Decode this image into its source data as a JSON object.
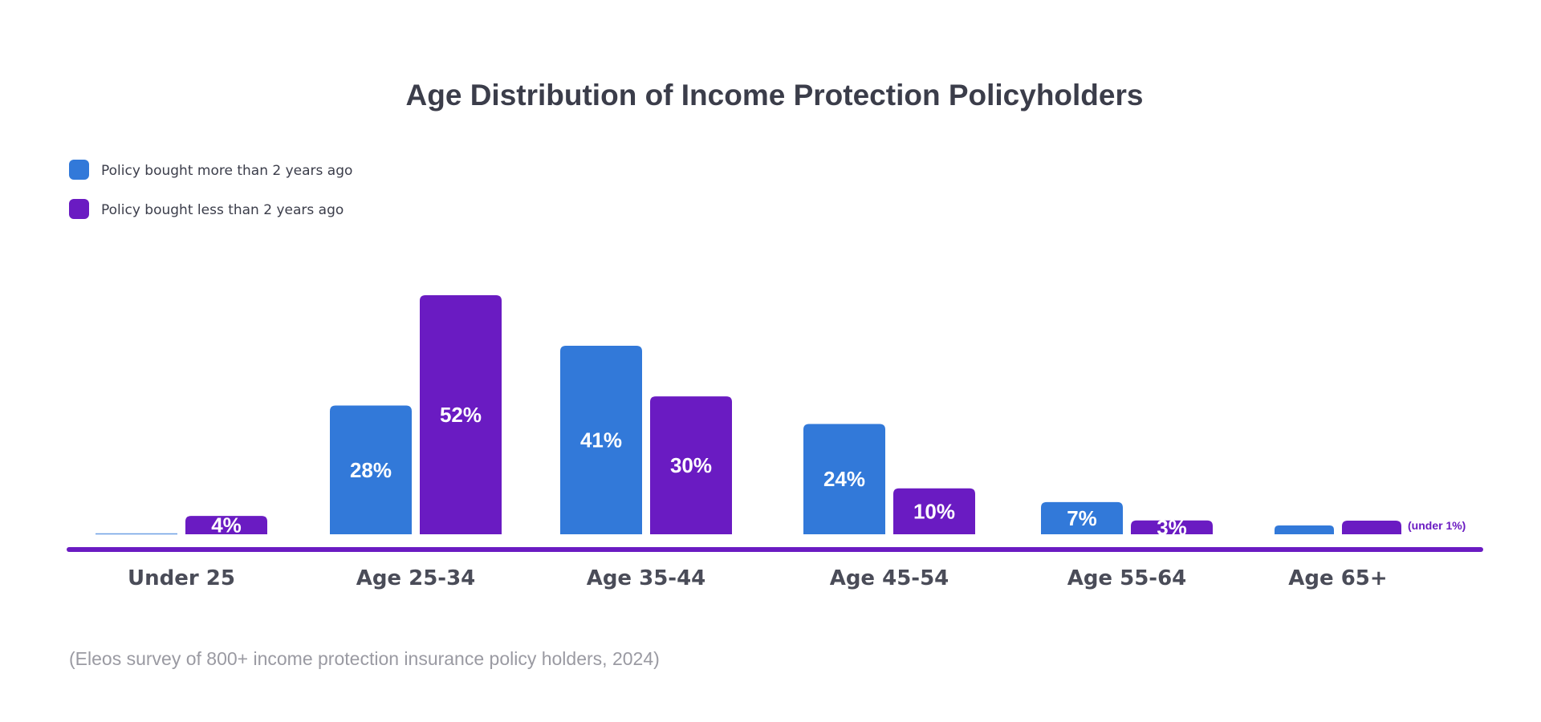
{
  "chart_data": {
    "type": "bar",
    "title": "Age Distribution of Income Protection Policyholders",
    "categories": [
      "Under 25",
      "Age 25-34",
      "Age 35-44",
      "Age 45-54",
      "Age 55-64",
      "Age 65+"
    ],
    "series": [
      {
        "name": "Policy bought more than 2 years ago",
        "color": "#3279d9",
        "values": [
          0,
          28,
          41,
          24,
          7,
          1
        ],
        "labels": [
          "",
          "28%",
          "41%",
          "24%",
          "7%",
          ""
        ]
      },
      {
        "name": "Policy bought less than 2 years ago",
        "color": "#6a1bc2",
        "values": [
          4,
          52,
          30,
          10,
          3,
          1
        ],
        "labels": [
          "4%",
          "52%",
          "30%",
          "10%",
          "3%",
          ""
        ]
      }
    ],
    "annotations": [
      {
        "category": "Age 65+",
        "text": "(under 1%)"
      }
    ],
    "ylim": [
      0,
      52
    ],
    "grid": false,
    "legend_position": "top-left",
    "axis_line_color": "#6a1bc2",
    "source": "(Eleos survey of 800+ income protection insurance policy holders, 2024)"
  }
}
